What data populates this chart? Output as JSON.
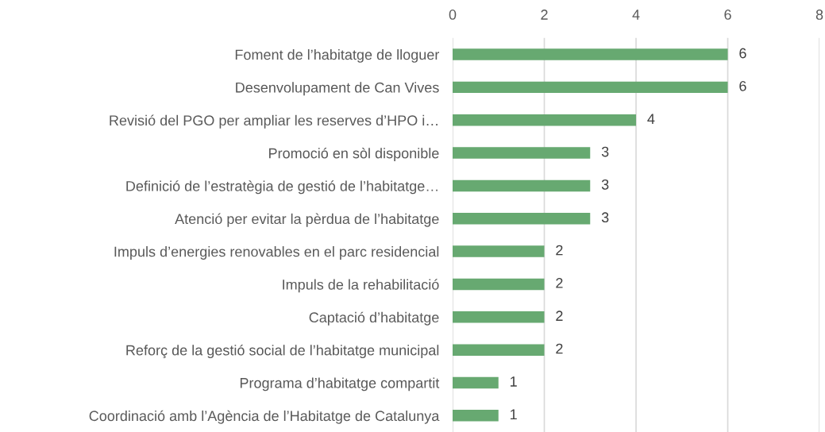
{
  "chart_data": {
    "type": "bar",
    "orientation": "horizontal",
    "categories": [
      "Foment de l’habitatge de lloguer",
      "Desenvolupament de Can Vives",
      "Revisió del PGO per ampliar les reserves d’HPO i…",
      "Promoció en sòl disponible",
      "Definició de l’estratègia de gestió de l’habitatge…",
      "Atenció per evitar la pèrdua de l’habitatge",
      "Impuls d’energies renovables en el parc residencial",
      "Impuls de la rehabilitació",
      "Captació d’habitatge",
      "Reforç de la gestió social de l’habitatge municipal",
      "Programa d’habitatge compartit",
      "Coordinació amb l’Agència de l’Habitatge de Catalunya"
    ],
    "values": [
      6,
      6,
      4,
      3,
      3,
      3,
      2,
      2,
      2,
      2,
      1,
      1
    ],
    "color": "#67a971",
    "xlim": [
      0,
      8
    ],
    "xticks": [
      0,
      2,
      4,
      6,
      8
    ],
    "grid": "x",
    "data_labels": true
  }
}
